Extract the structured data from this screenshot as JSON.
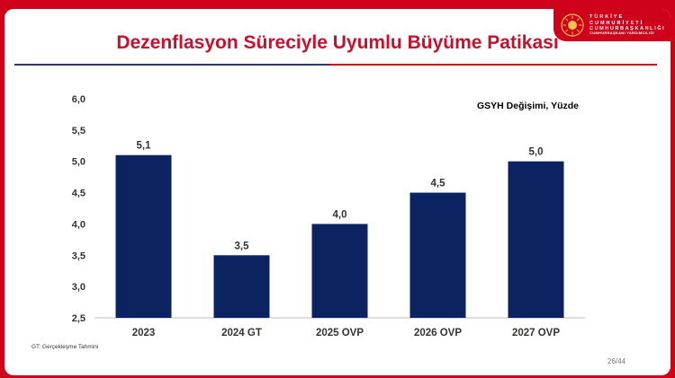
{
  "header": {
    "org_line1": "TÜRKİYE CUMHURİYETİ",
    "org_line2": "CUMHURBAŞKANLIĞI",
    "org_line3": "CUMHURBAŞKANI YARDIMCILIĞI",
    "title": "Dezenflasyon Süreciyle Uyumlu Büyüme Patikası"
  },
  "chart_data": {
    "type": "bar",
    "title": "",
    "unit_label": "GSYH Değişimi, Yüzde",
    "categories": [
      "2023",
      "2024 GT",
      "2025 OVP",
      "2026 OVP",
      "2027 OVP"
    ],
    "values": [
      5.1,
      3.5,
      4.0,
      4.5,
      5.0
    ],
    "value_labels": [
      "5,1",
      "3,5",
      "4,0",
      "4,5",
      "5,0"
    ],
    "ylim": [
      2.5,
      6.0
    ],
    "yticks": [
      2.5,
      3.0,
      3.5,
      4.0,
      4.5,
      5.0,
      5.5,
      6.0
    ],
    "ytick_labels": [
      "2,5",
      "3,0",
      "3,5",
      "4,0",
      "4,5",
      "5,0",
      "5,5",
      "6,0"
    ],
    "bar_color": "#0b2461",
    "grid": false,
    "legend": "none"
  },
  "footer": {
    "note": "GT: Gerçekleşme Tahmini",
    "page": "26/44"
  }
}
